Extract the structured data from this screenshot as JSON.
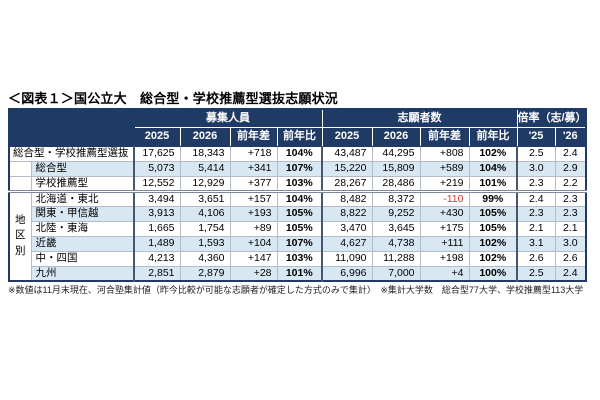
{
  "title": "＜図表１＞国公立大　総合型・学校推薦型選抜志願状況",
  "footnote": "※数値は11月末現在、河合塾集計値（昨今比較が可能な志願者が確定した方式のみで集計）　※集計大学数　総合型77大学、学校推薦型113大学",
  "colors": {
    "navy": "#1f3a64",
    "stripe": "#d8e8f3",
    "negative": "#e03232"
  },
  "table": {
    "col_groups": [
      "募集人員",
      "志願者数",
      "倍率（志/募）"
    ],
    "sub_headers": [
      "2025",
      "2026",
      "前年差",
      "前年比",
      "2025",
      "2026",
      "前年差",
      "前年比",
      "'25",
      "'26"
    ],
    "region_group_label": "地区別",
    "rows": [
      {
        "label": "総合型・学校推薦型選抜",
        "values": [
          "17,625",
          "18,343",
          "+718",
          "104%",
          "43,487",
          "44,295",
          "+808",
          "102%",
          "2.5",
          "2.4"
        ]
      },
      {
        "label": "総合型",
        "values": [
          "5,073",
          "5,414",
          "+341",
          "107%",
          "15,220",
          "15,809",
          "+589",
          "104%",
          "3.0",
          "2.9"
        ]
      },
      {
        "label": "学校推薦型",
        "values": [
          "12,552",
          "12,929",
          "+377",
          "103%",
          "28,267",
          "28,486",
          "+219",
          "101%",
          "2.3",
          "2.2"
        ]
      },
      {
        "label": "北海道・東北",
        "values": [
          "3,494",
          "3,651",
          "+157",
          "104%",
          "8,482",
          "8,372",
          "-110",
          "99%",
          "2.4",
          "2.3"
        ]
      },
      {
        "label": "関東・甲信越",
        "values": [
          "3,913",
          "4,106",
          "+193",
          "105%",
          "8,822",
          "9,252",
          "+430",
          "105%",
          "2.3",
          "2.3"
        ]
      },
      {
        "label": "北陸・東海",
        "values": [
          "1,665",
          "1,754",
          "+89",
          "105%",
          "3,470",
          "3,645",
          "+175",
          "105%",
          "2.1",
          "2.1"
        ]
      },
      {
        "label": "近畿",
        "values": [
          "1,489",
          "1,593",
          "+104",
          "107%",
          "4,627",
          "4,738",
          "+111",
          "102%",
          "3.1",
          "3.0"
        ]
      },
      {
        "label": "中・四国",
        "values": [
          "4,213",
          "4,360",
          "+147",
          "103%",
          "11,090",
          "11,288",
          "+198",
          "102%",
          "2.6",
          "2.6"
        ]
      },
      {
        "label": "九州",
        "values": [
          "2,851",
          "2,879",
          "+28",
          "101%",
          "6,996",
          "7,000",
          "+4",
          "100%",
          "2.5",
          "2.4"
        ]
      }
    ]
  },
  "chart_data": {
    "type": "table",
    "title": "＜図表１＞国公立大　総合型・学校推薦型選抜志願状況",
    "column_groups": [
      {
        "label": "募集人員",
        "columns": [
          "2025",
          "2026",
          "前年差",
          "前年比"
        ]
      },
      {
        "label": "志願者数",
        "columns": [
          "2025",
          "2026",
          "前年差",
          "前年比"
        ]
      },
      {
        "label": "倍率（志/募）",
        "columns": [
          "'25",
          "'26"
        ]
      }
    ],
    "rows": [
      {
        "label": "総合型・学校推薦型選抜",
        "boshu_2025": 17625,
        "boshu_2026": 18343,
        "boshu_diff": 718,
        "boshu_ratio_pct": 104,
        "shigan_2025": 43487,
        "shigan_2026": 44295,
        "shigan_diff": 808,
        "shigan_ratio_pct": 102,
        "bairitsu_25": 2.5,
        "bairitsu_26": 2.4
      },
      {
        "label": "総合型",
        "boshu_2025": 5073,
        "boshu_2026": 5414,
        "boshu_diff": 341,
        "boshu_ratio_pct": 107,
        "shigan_2025": 15220,
        "shigan_2026": 15809,
        "shigan_diff": 589,
        "shigan_ratio_pct": 104,
        "bairitsu_25": 3.0,
        "bairitsu_26": 2.9
      },
      {
        "label": "学校推薦型",
        "boshu_2025": 12552,
        "boshu_2026": 12929,
        "boshu_diff": 377,
        "boshu_ratio_pct": 103,
        "shigan_2025": 28267,
        "shigan_2026": 28486,
        "shigan_diff": 219,
        "shigan_ratio_pct": 101,
        "bairitsu_25": 2.3,
        "bairitsu_26": 2.2
      },
      {
        "label": "北海道・東北",
        "region": true,
        "boshu_2025": 3494,
        "boshu_2026": 3651,
        "boshu_diff": 157,
        "boshu_ratio_pct": 104,
        "shigan_2025": 8482,
        "shigan_2026": 8372,
        "shigan_diff": -110,
        "shigan_ratio_pct": 99,
        "bairitsu_25": 2.4,
        "bairitsu_26": 2.3
      },
      {
        "label": "関東・甲信越",
        "region": true,
        "boshu_2025": 3913,
        "boshu_2026": 4106,
        "boshu_diff": 193,
        "boshu_ratio_pct": 105,
        "shigan_2025": 8822,
        "shigan_2026": 9252,
        "shigan_diff": 430,
        "shigan_ratio_pct": 105,
        "bairitsu_25": 2.3,
        "bairitsu_26": 2.3
      },
      {
        "label": "北陸・東海",
        "region": true,
        "boshu_2025": 1665,
        "boshu_2026": 1754,
        "boshu_diff": 89,
        "boshu_ratio_pct": 105,
        "shigan_2025": 3470,
        "shigan_2026": 3645,
        "shigan_diff": 175,
        "shigan_ratio_pct": 105,
        "bairitsu_25": 2.1,
        "bairitsu_26": 2.1
      },
      {
        "label": "近畿",
        "region": true,
        "boshu_2025": 1489,
        "boshu_2026": 1593,
        "boshu_diff": 104,
        "boshu_ratio_pct": 107,
        "shigan_2025": 4627,
        "shigan_2026": 4738,
        "shigan_diff": 111,
        "shigan_ratio_pct": 102,
        "bairitsu_25": 3.1,
        "bairitsu_26": 3.0
      },
      {
        "label": "中・四国",
        "region": true,
        "boshu_2025": 4213,
        "boshu_2026": 4360,
        "boshu_diff": 147,
        "boshu_ratio_pct": 103,
        "shigan_2025": 11090,
        "shigan_2026": 11288,
        "shigan_diff": 198,
        "shigan_ratio_pct": 102,
        "bairitsu_25": 2.6,
        "bairitsu_26": 2.6
      },
      {
        "label": "九州",
        "region": true,
        "boshu_2025": 2851,
        "boshu_2026": 2879,
        "boshu_diff": 28,
        "boshu_ratio_pct": 101,
        "shigan_2025": 6996,
        "shigan_2026": 7000,
        "shigan_diff": 4,
        "shigan_ratio_pct": 100,
        "bairitsu_25": 2.5,
        "bairitsu_26": 2.4
      }
    ],
    "notes": "前年差 of 志願者数 for 北海道・東北 (-110) is shown in red"
  }
}
